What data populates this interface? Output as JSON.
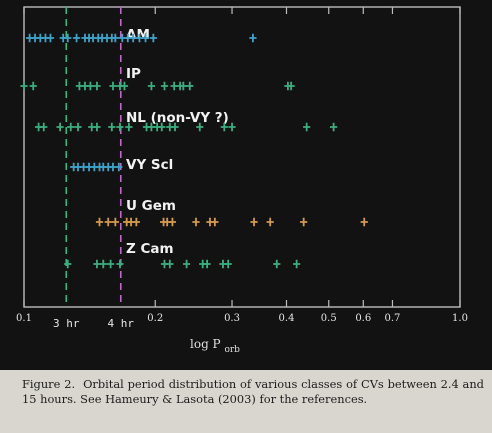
{
  "chart_data": {
    "type": "scatter",
    "xscale": "log",
    "xlim": [
      0.1,
      1.0
    ],
    "xlabel": "log P",
    "xlabel_sub": "orb",
    "xticks": [
      {
        "v": 0.1,
        "label": "0.1"
      },
      {
        "v": 0.2,
        "label": "0.2"
      },
      {
        "v": 0.3,
        "label": "0.3"
      },
      {
        "v": 0.4,
        "label": "0.4"
      },
      {
        "v": 0.5,
        "label": "0.5"
      },
      {
        "v": 0.6,
        "label": "0.6"
      },
      {
        "v": 0.7,
        "label": "0.7"
      },
      {
        "v": 1.0,
        "label": "1.0"
      }
    ],
    "vlines": [
      {
        "x": 0.125,
        "label": "3 hr",
        "color": "#36b87a"
      },
      {
        "x": 0.1667,
        "label": "4 hr",
        "color": "#c069c7"
      }
    ],
    "series": [
      {
        "name": "AM",
        "color": "#3ea3c9",
        "x": [
          0.103,
          0.106,
          0.109,
          0.112,
          0.115,
          0.123,
          0.126,
          0.132,
          0.138,
          0.141,
          0.144,
          0.148,
          0.151,
          0.155,
          0.159,
          0.162,
          0.168,
          0.173,
          0.178,
          0.184,
          0.19,
          0.198,
          0.335
        ]
      },
      {
        "name": "IP",
        "color": "#3cae80",
        "x": [
          0.1,
          0.105,
          0.134,
          0.138,
          0.142,
          0.147,
          0.16,
          0.166,
          0.17,
          0.196,
          0.21,
          0.221,
          0.228,
          0.232,
          0.24,
          0.403,
          0.41
        ]
      },
      {
        "name": "NL (non-VY ?)",
        "color": "#3cae80",
        "x": [
          0.108,
          0.111,
          0.121,
          0.128,
          0.133,
          0.143,
          0.147,
          0.159,
          0.166,
          0.174,
          0.191,
          0.196,
          0.202,
          0.207,
          0.216,
          0.222,
          0.253,
          0.288,
          0.3,
          0.445,
          0.513
        ]
      },
      {
        "name": "VY Scl",
        "color": "#3ea3c9",
        "x": [
          0.13,
          0.133,
          0.137,
          0.141,
          0.145,
          0.149,
          0.152,
          0.156,
          0.16,
          0.165
        ]
      },
      {
        "name": "U Gem",
        "color": "#d49a4f",
        "x": [
          0.149,
          0.156,
          0.162,
          0.172,
          0.176,
          0.181,
          0.209,
          0.213,
          0.219,
          0.248,
          0.267,
          0.274,
          0.337,
          0.367,
          0.438,
          0.603
        ]
      },
      {
        "name": "Z Cam",
        "color": "#3cae80",
        "x": [
          0.126,
          0.147,
          0.152,
          0.158,
          0.166,
          0.21,
          0.216,
          0.236,
          0.257,
          0.263,
          0.286,
          0.294,
          0.38,
          0.422
        ]
      }
    ]
  },
  "caption": {
    "label": "Figure 2.",
    "text": "Orbital period distribution of various classes of CVs between 2.4 and 15 hours. See Hameury & Lasota (2003) for the references."
  }
}
